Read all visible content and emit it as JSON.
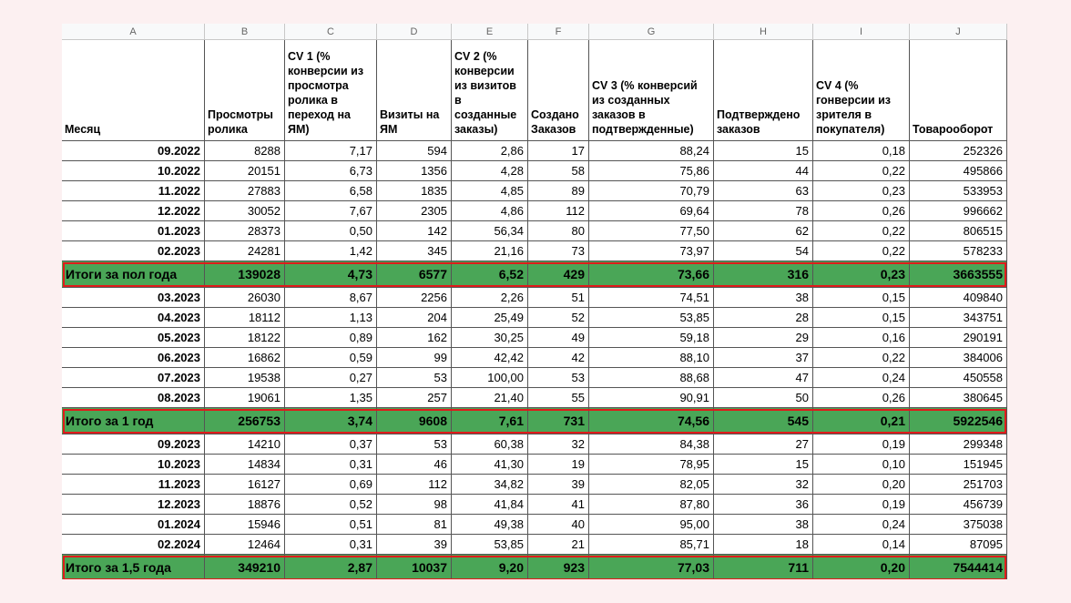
{
  "columns": [
    "A",
    "B",
    "C",
    "D",
    "E",
    "F",
    "G",
    "H",
    "I",
    "J"
  ],
  "headers": [
    "Месяц",
    "Просмотры ролика",
    "CV 1 (% конверсии из просмотра ролика в переход на ЯМ)",
    "Визиты на ЯМ",
    "CV 2 (% конверсии из визитов в созданные заказы)",
    "Создано Заказов",
    "CV 3 (% конверсий из созданных заказов в подтвержденные)",
    "Подтверждено заказов",
    "CV 4 (% гонверсии из зрителя в покупателя)",
    "Товарооборот"
  ],
  "sections": [
    {
      "rows": [
        [
          "09.2022",
          "8288",
          "7,17",
          "594",
          "2,86",
          "17",
          "88,24",
          "15",
          "0,18",
          "252326"
        ],
        [
          "10.2022",
          "20151",
          "6,73",
          "1356",
          "4,28",
          "58",
          "75,86",
          "44",
          "0,22",
          "495866"
        ],
        [
          "11.2022",
          "27883",
          "6,58",
          "1835",
          "4,85",
          "89",
          "70,79",
          "63",
          "0,23",
          "533953"
        ],
        [
          "12.2022",
          "30052",
          "7,67",
          "2305",
          "4,86",
          "112",
          "69,64",
          "78",
          "0,26",
          "996662"
        ],
        [
          "01.2023",
          "28373",
          "0,50",
          "142",
          "56,34",
          "80",
          "77,50",
          "62",
          "0,22",
          "806515"
        ],
        [
          "02.2023",
          "24281",
          "1,42",
          "345",
          "21,16",
          "73",
          "73,97",
          "54",
          "0,22",
          "578233"
        ]
      ],
      "total": [
        "Итоги за пол года",
        "139028",
        "4,73",
        "6577",
        "6,52",
        "429",
        "73,66",
        "316",
        "0,23",
        "3663555"
      ]
    },
    {
      "rows": [
        [
          "03.2023",
          "26030",
          "8,67",
          "2256",
          "2,26",
          "51",
          "74,51",
          "38",
          "0,15",
          "409840"
        ],
        [
          "04.2023",
          "18112",
          "1,13",
          "204",
          "25,49",
          "52",
          "53,85",
          "28",
          "0,15",
          "343751"
        ],
        [
          "05.2023",
          "18122",
          "0,89",
          "162",
          "30,25",
          "49",
          "59,18",
          "29",
          "0,16",
          "290191"
        ],
        [
          "06.2023",
          "16862",
          "0,59",
          "99",
          "42,42",
          "42",
          "88,10",
          "37",
          "0,22",
          "384006"
        ],
        [
          "07.2023",
          "19538",
          "0,27",
          "53",
          "100,00",
          "53",
          "88,68",
          "47",
          "0,24",
          "450558"
        ],
        [
          "08.2023",
          "19061",
          "1,35",
          "257",
          "21,40",
          "55",
          "90,91",
          "50",
          "0,26",
          "380645"
        ]
      ],
      "total": [
        "Итого за 1 год",
        "256753",
        "3,74",
        "9608",
        "7,61",
        "731",
        "74,56",
        "545",
        "0,21",
        "5922546"
      ]
    },
    {
      "rows": [
        [
          "09.2023",
          "14210",
          "0,37",
          "53",
          "60,38",
          "32",
          "84,38",
          "27",
          "0,19",
          "299348"
        ],
        [
          "10.2023",
          "14834",
          "0,31",
          "46",
          "41,30",
          "19",
          "78,95",
          "15",
          "0,10",
          "151945"
        ],
        [
          "11.2023",
          "16127",
          "0,69",
          "112",
          "34,82",
          "39",
          "82,05",
          "32",
          "0,20",
          "251703"
        ],
        [
          "12.2023",
          "18876",
          "0,52",
          "98",
          "41,84",
          "41",
          "87,80",
          "36",
          "0,19",
          "456739"
        ],
        [
          "01.2024",
          "15946",
          "0,51",
          "81",
          "49,38",
          "40",
          "95,00",
          "38",
          "0,24",
          "375038"
        ],
        [
          "02.2024",
          "12464",
          "0,31",
          "39",
          "53,85",
          "21",
          "85,71",
          "18",
          "0,14",
          "87095"
        ]
      ],
      "total": [
        "Итого за 1,5 года",
        "349210",
        "2,87",
        "10037",
        "9,20",
        "923",
        "77,03",
        "711",
        "0,20",
        "7544414"
      ]
    }
  ]
}
